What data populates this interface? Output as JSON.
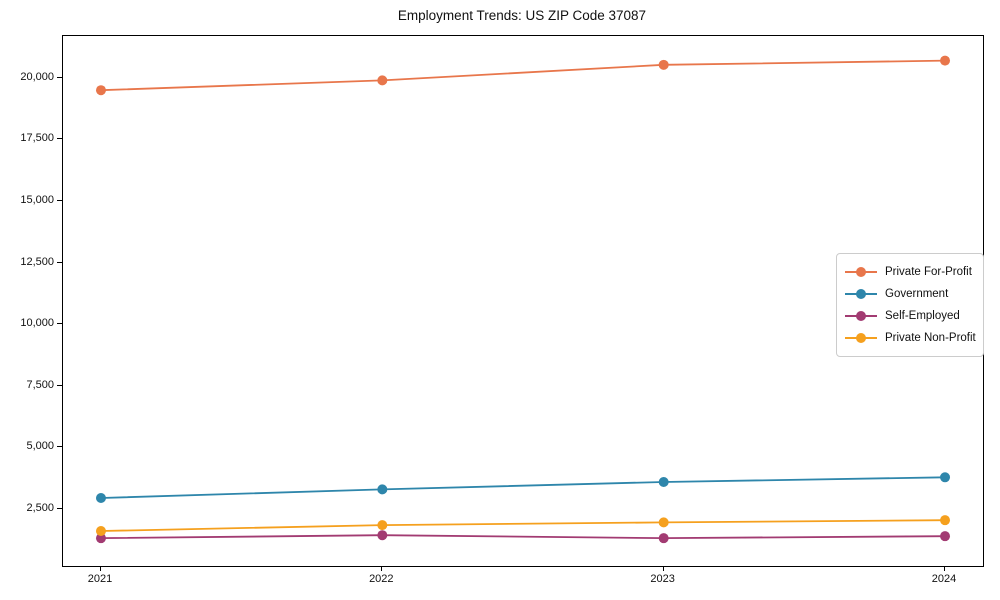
{
  "chart_data": {
    "type": "line",
    "title": "Employment Trends: US ZIP Code 37087",
    "xlabel": "",
    "ylabel": "",
    "x": [
      2021,
      2022,
      2023,
      2024
    ],
    "x_tick_labels": [
      "2021",
      "2022",
      "2023",
      "2024"
    ],
    "series": [
      {
        "name": "Private For-Profit",
        "color": "#E8764B",
        "values": [
          19500,
          19900,
          20530,
          20700
        ]
      },
      {
        "name": "Government",
        "color": "#2E86AB",
        "values": [
          2950,
          3300,
          3600,
          3790
        ]
      },
      {
        "name": "Self-Employed",
        "color": "#A23B72",
        "values": [
          1320,
          1440,
          1320,
          1400
        ]
      },
      {
        "name": "Private Non-Profit",
        "color": "#F5A01E",
        "values": [
          1610,
          1850,
          1960,
          2050
        ]
      }
    ],
    "y_ticks": [
      {
        "value": 2500,
        "label": "2,500"
      },
      {
        "value": 5000,
        "label": "5,000"
      },
      {
        "value": 7500,
        "label": "7,500"
      },
      {
        "value": 10000,
        "label": "10,000"
      },
      {
        "value": 12500,
        "label": "12,500"
      },
      {
        "value": 15000,
        "label": "15,000"
      },
      {
        "value": 17500,
        "label": "17,500"
      },
      {
        "value": 20000,
        "label": "20,000"
      }
    ],
    "ylim": [
      190,
      21700
    ],
    "xlim": [
      2020.865,
      2024.135
    ],
    "grid": false,
    "legend_position": "right",
    "frame_color": "#000000",
    "legend_border_color": "#cccccc",
    "marker": "circle",
    "marker_radius": 5,
    "line_width": 1.8
  }
}
